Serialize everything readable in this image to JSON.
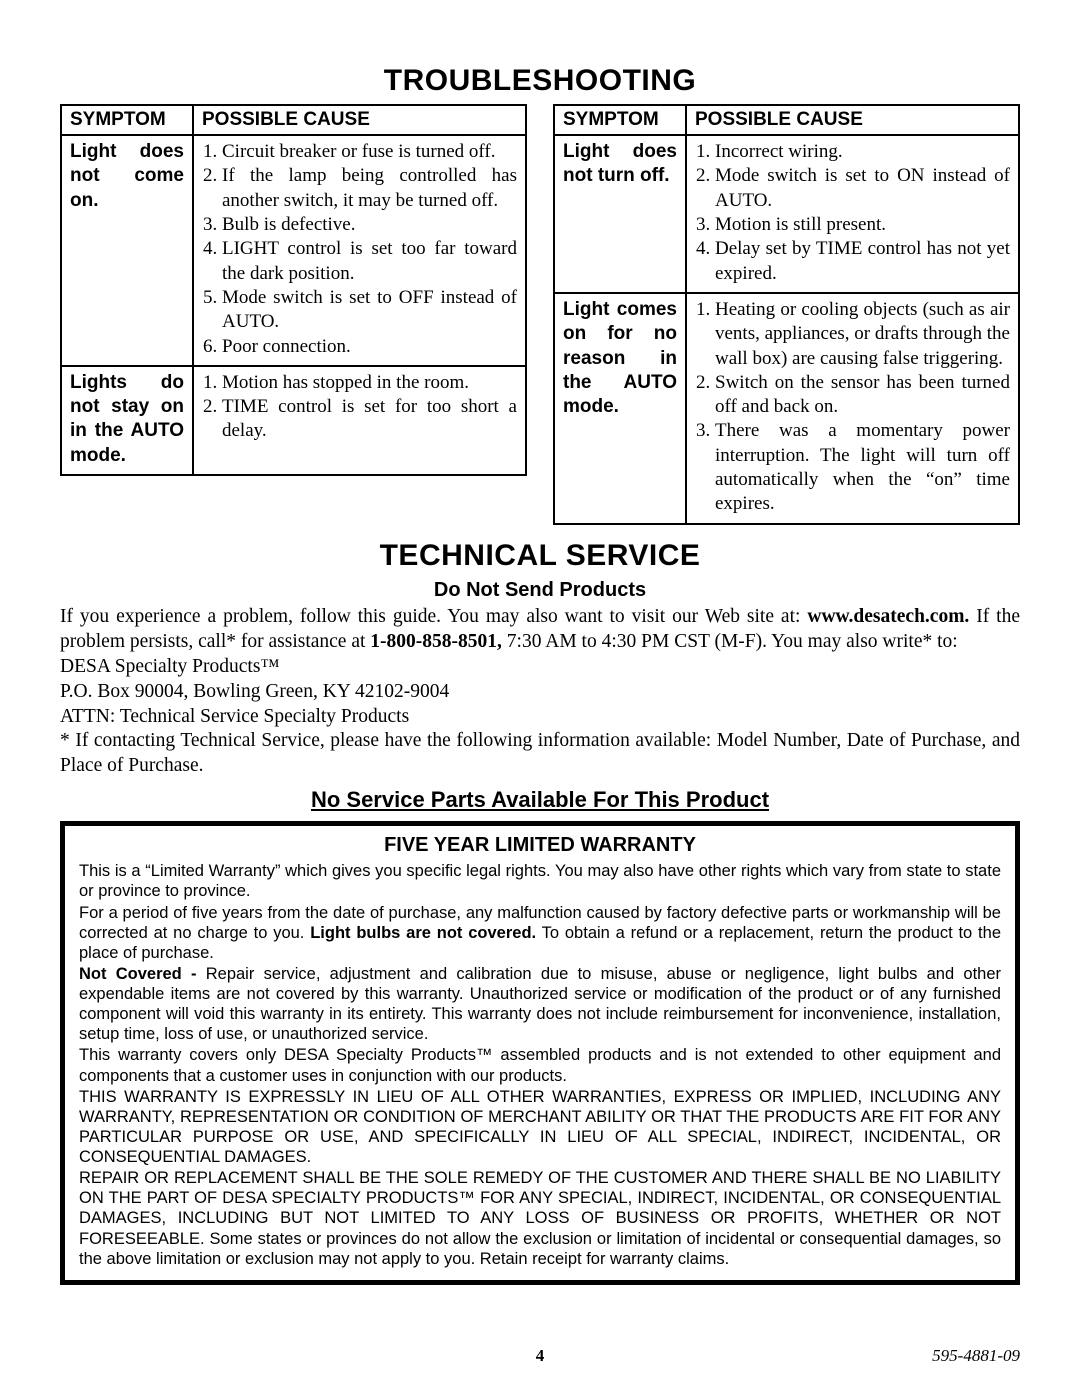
{
  "headings": {
    "troubleshooting": "TROUBLESHOOTING",
    "technical": "TECHNICAL SERVICE",
    "doNotSend": "Do Not Send Products",
    "noService": "No Service Parts Available For This Product",
    "warrantyTitle": "FIVE YEAR LIMITED WARRANTY"
  },
  "tableHeaders": {
    "symptom": "SYMPTOM",
    "cause": "POSSIBLE CAUSE"
  },
  "leftTable": [
    {
      "symptom": "Light does not come on.",
      "causes": [
        "Circuit breaker or fuse is turned off.",
        "If the lamp being controlled has another switch, it may be turned off.",
        "Bulb is defective.",
        "LIGHT control is set too far toward the dark position.",
        "Mode switch is set to OFF instead of AUTO.",
        "Poor connection."
      ]
    },
    {
      "symptom": "Lights do not stay on in the AUTO mode.",
      "causes": [
        "Motion has stopped in the room.",
        "TIME control is set for too short a delay."
      ]
    }
  ],
  "rightTable": [
    {
      "symptom": "Light does not turn off.",
      "causes": [
        "Incorrect wiring.",
        "Mode switch is set to ON instead of AUTO.",
        "Motion is still present.",
        "Delay set by TIME control has not yet expired."
      ]
    },
    {
      "symptom": "Light comes on for no reason in the AUTO mode.",
      "causes": [
        "Heating or cooling objects (such as air vents, appliances, or drafts through the wall box) are causing false triggering.",
        "Switch on the sensor has been turned off and back on.",
        "There was a momentary power interruption. The light will turn off automatically when the “on” time expires."
      ]
    }
  ],
  "technical": {
    "p1_a": "If you experience a problem, follow this guide. You may also want to visit our Web site at: ",
    "p1_site": "www.desatech.com.",
    "p1_b": " If the problem persists, call* for assistance at ",
    "p1_phone": "1-800-858-8501,",
    "p1_c": " 7:30 AM to 4:30 PM CST (M-F). You may also write* to:",
    "p2": "DESA Specialty Products™",
    "p3": "P.O. Box 90004, Bowling Green, KY 42102-9004",
    "p4": "ATTN: Technical Service Specialty Products",
    "p5": "* If contacting Technical Service, please have the following information available: Model Number, Date of Purchase, and Place of Purchase."
  },
  "warranty": {
    "p1": "This is a “Limited Warranty” which gives you specific legal rights. You may also have other rights which vary from state to state or province to province.",
    "p2a": "For a period of five years from the date of purchase, any malfunction caused by factory defective parts or workmanship will be corrected at no charge to you. ",
    "p2bold": "Light bulbs are not covered.",
    "p2b": " To obtain a refund or a replacement, return the product to the place of purchase.",
    "p3bold": "Not Covered - ",
    "p3": "Repair service, adjustment and calibration due to misuse, abuse or negligence, light bulbs and other expendable items are not covered by this warranty. Unauthorized service or modification of the product or of any furnished component will void this warranty in its entirety. This warranty does not include reimbursement for inconvenience, installation, setup time, loss of use, or unauthorized service.",
    "p4": "This warranty covers only DESA Specialty Products™ assembled products and is not extended to other equipment and components that a customer uses in conjunction with our products.",
    "p5": "THIS WARRANTY IS EXPRESSLY IN LIEU OF ALL OTHER WARRANTIES, EXPRESS OR IMPLIED, INCLUDING ANY WARRANTY, REPRESENTATION OR CONDITION OF MERCHANT ABILITY OR THAT THE PRODUCTS ARE FIT FOR ANY PARTICULAR PURPOSE OR USE, AND SPECIFICALLY IN LIEU OF ALL SPECIAL, INDIRECT, INCIDENTAL, OR CONSEQUENTIAL DAMAGES.",
    "p6": "REPAIR OR REPLACEMENT SHALL BE THE SOLE REMEDY OF THE CUSTOMER AND THERE SHALL BE NO LIABILITY ON THE PART OF DESA SPECIALTY PRODUCTS™ FOR ANY SPECIAL, INDIRECT, INCIDENTAL, OR CONSEQUENTIAL DAMAGES, INCLUDING BUT NOT LIMITED TO ANY LOSS OF BUSINESS OR PROFITS, WHETHER OR NOT FORESEEABLE. Some states or provinces do not allow the exclusion or limitation of incidental or consequential damages, so the above limitation or exclusion may not apply to you. Retain receipt for warranty claims."
  },
  "footer": {
    "page": "4",
    "part": "595-4881-09"
  }
}
